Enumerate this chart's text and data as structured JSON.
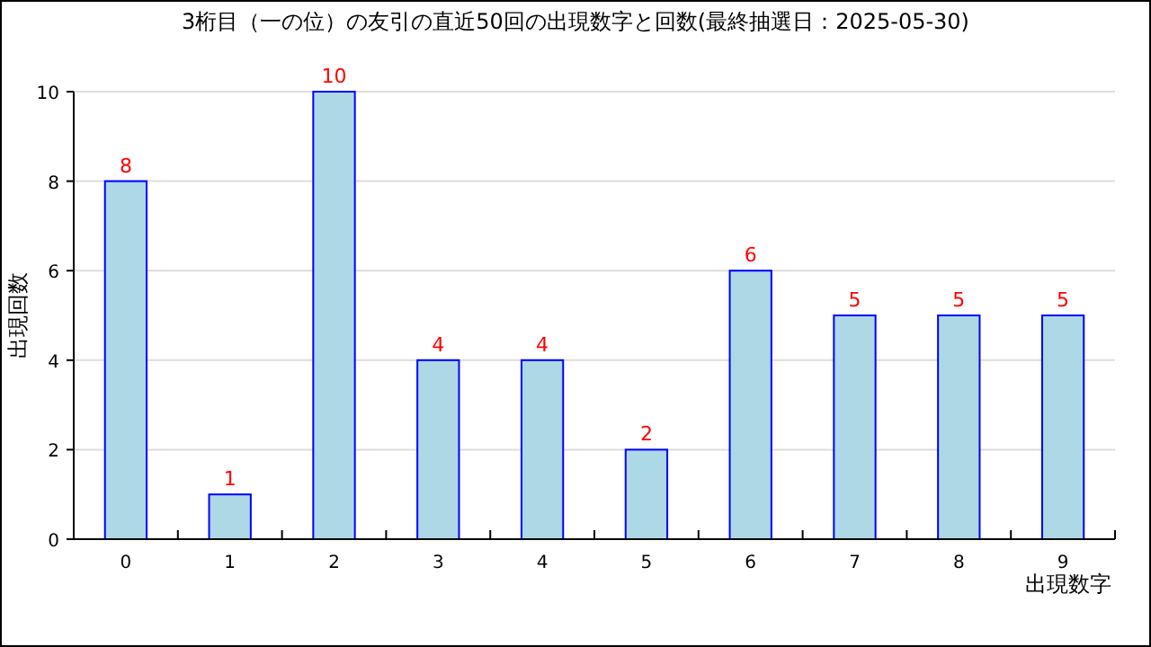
{
  "chart_data": {
    "type": "bar",
    "title": "3桁目（一の位）の友引の直近50回の出現数字と回数(最終抽選日：2025-05-30)",
    "xlabel": "出現数字",
    "ylabel": "出現回数",
    "categories": [
      "0",
      "1",
      "2",
      "3",
      "4",
      "5",
      "6",
      "7",
      "8",
      "9"
    ],
    "values": [
      8,
      1,
      10,
      4,
      4,
      2,
      6,
      5,
      5,
      5
    ],
    "color": "#add8e6",
    "ylim": [
      0,
      10
    ],
    "yticks": [
      0,
      2,
      4,
      6,
      8,
      10
    ],
    "grid": "y",
    "data_labels": true
  }
}
